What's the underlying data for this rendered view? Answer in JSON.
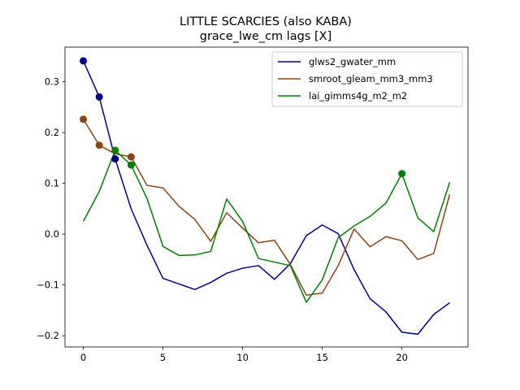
{
  "chart_data": {
    "type": "line",
    "title": "LITTLE SCARCIES (also KABA)",
    "subtitle": "grace_lwe_cm lags [X]",
    "xlabel": "",
    "ylabel": "",
    "xlim": [
      -1.15,
      24.15
    ],
    "ylim": [
      -0.222,
      0.368
    ],
    "x_ticks": [
      0,
      5,
      10,
      15,
      20
    ],
    "y_ticks": [
      -0.2,
      -0.1,
      0.0,
      0.1,
      0.2,
      0.3
    ],
    "x_tick_labels": [
      "0",
      "5",
      "10",
      "15",
      "20"
    ],
    "y_tick_labels": [
      "−0.2",
      "−0.1",
      "0.0",
      "0.1",
      "0.2",
      "0.3"
    ],
    "grid": false,
    "legend_position": "upper right",
    "x": [
      0,
      1,
      2,
      3,
      4,
      5,
      6,
      7,
      8,
      9,
      10,
      11,
      12,
      13,
      14,
      15,
      16,
      17,
      18,
      19,
      20,
      21,
      22,
      23
    ],
    "series": [
      {
        "name": "glws2_gwater_mm",
        "color": "#00008b",
        "values": [
          0.341,
          0.27,
          0.148,
          0.05,
          -0.022,
          -0.087,
          -0.098,
          -0.109,
          -0.095,
          -0.077,
          -0.067,
          -0.062,
          -0.089,
          -0.058,
          -0.003,
          0.018,
          0.001,
          -0.07,
          -0.127,
          -0.153,
          -0.193,
          -0.197,
          -0.158,
          -0.135
        ],
        "markers": [
          0,
          1,
          2
        ]
      },
      {
        "name": "smroot_gleam_mm3_mm3",
        "color": "#8b4513",
        "values": [
          0.226,
          0.175,
          0.158,
          0.152,
          0.096,
          0.091,
          0.055,
          0.029,
          -0.014,
          0.042,
          0.012,
          -0.017,
          -0.012,
          -0.06,
          -0.12,
          -0.116,
          -0.062,
          0.01,
          -0.025,
          -0.005,
          -0.013,
          -0.05,
          -0.038,
          0.078
        ],
        "markers": [
          0,
          1,
          3
        ]
      },
      {
        "name": "lai_gimms4g_m2_m2",
        "color": "#008000",
        "values": [
          0.025,
          0.084,
          0.165,
          0.136,
          0.07,
          -0.024,
          -0.042,
          -0.041,
          -0.034,
          0.069,
          0.025,
          -0.048,
          -0.055,
          -0.062,
          -0.134,
          -0.09,
          -0.007,
          0.016,
          0.035,
          0.061,
          0.119,
          0.032,
          0.005,
          0.102
        ],
        "markers": [
          2,
          3,
          20
        ]
      }
    ]
  }
}
